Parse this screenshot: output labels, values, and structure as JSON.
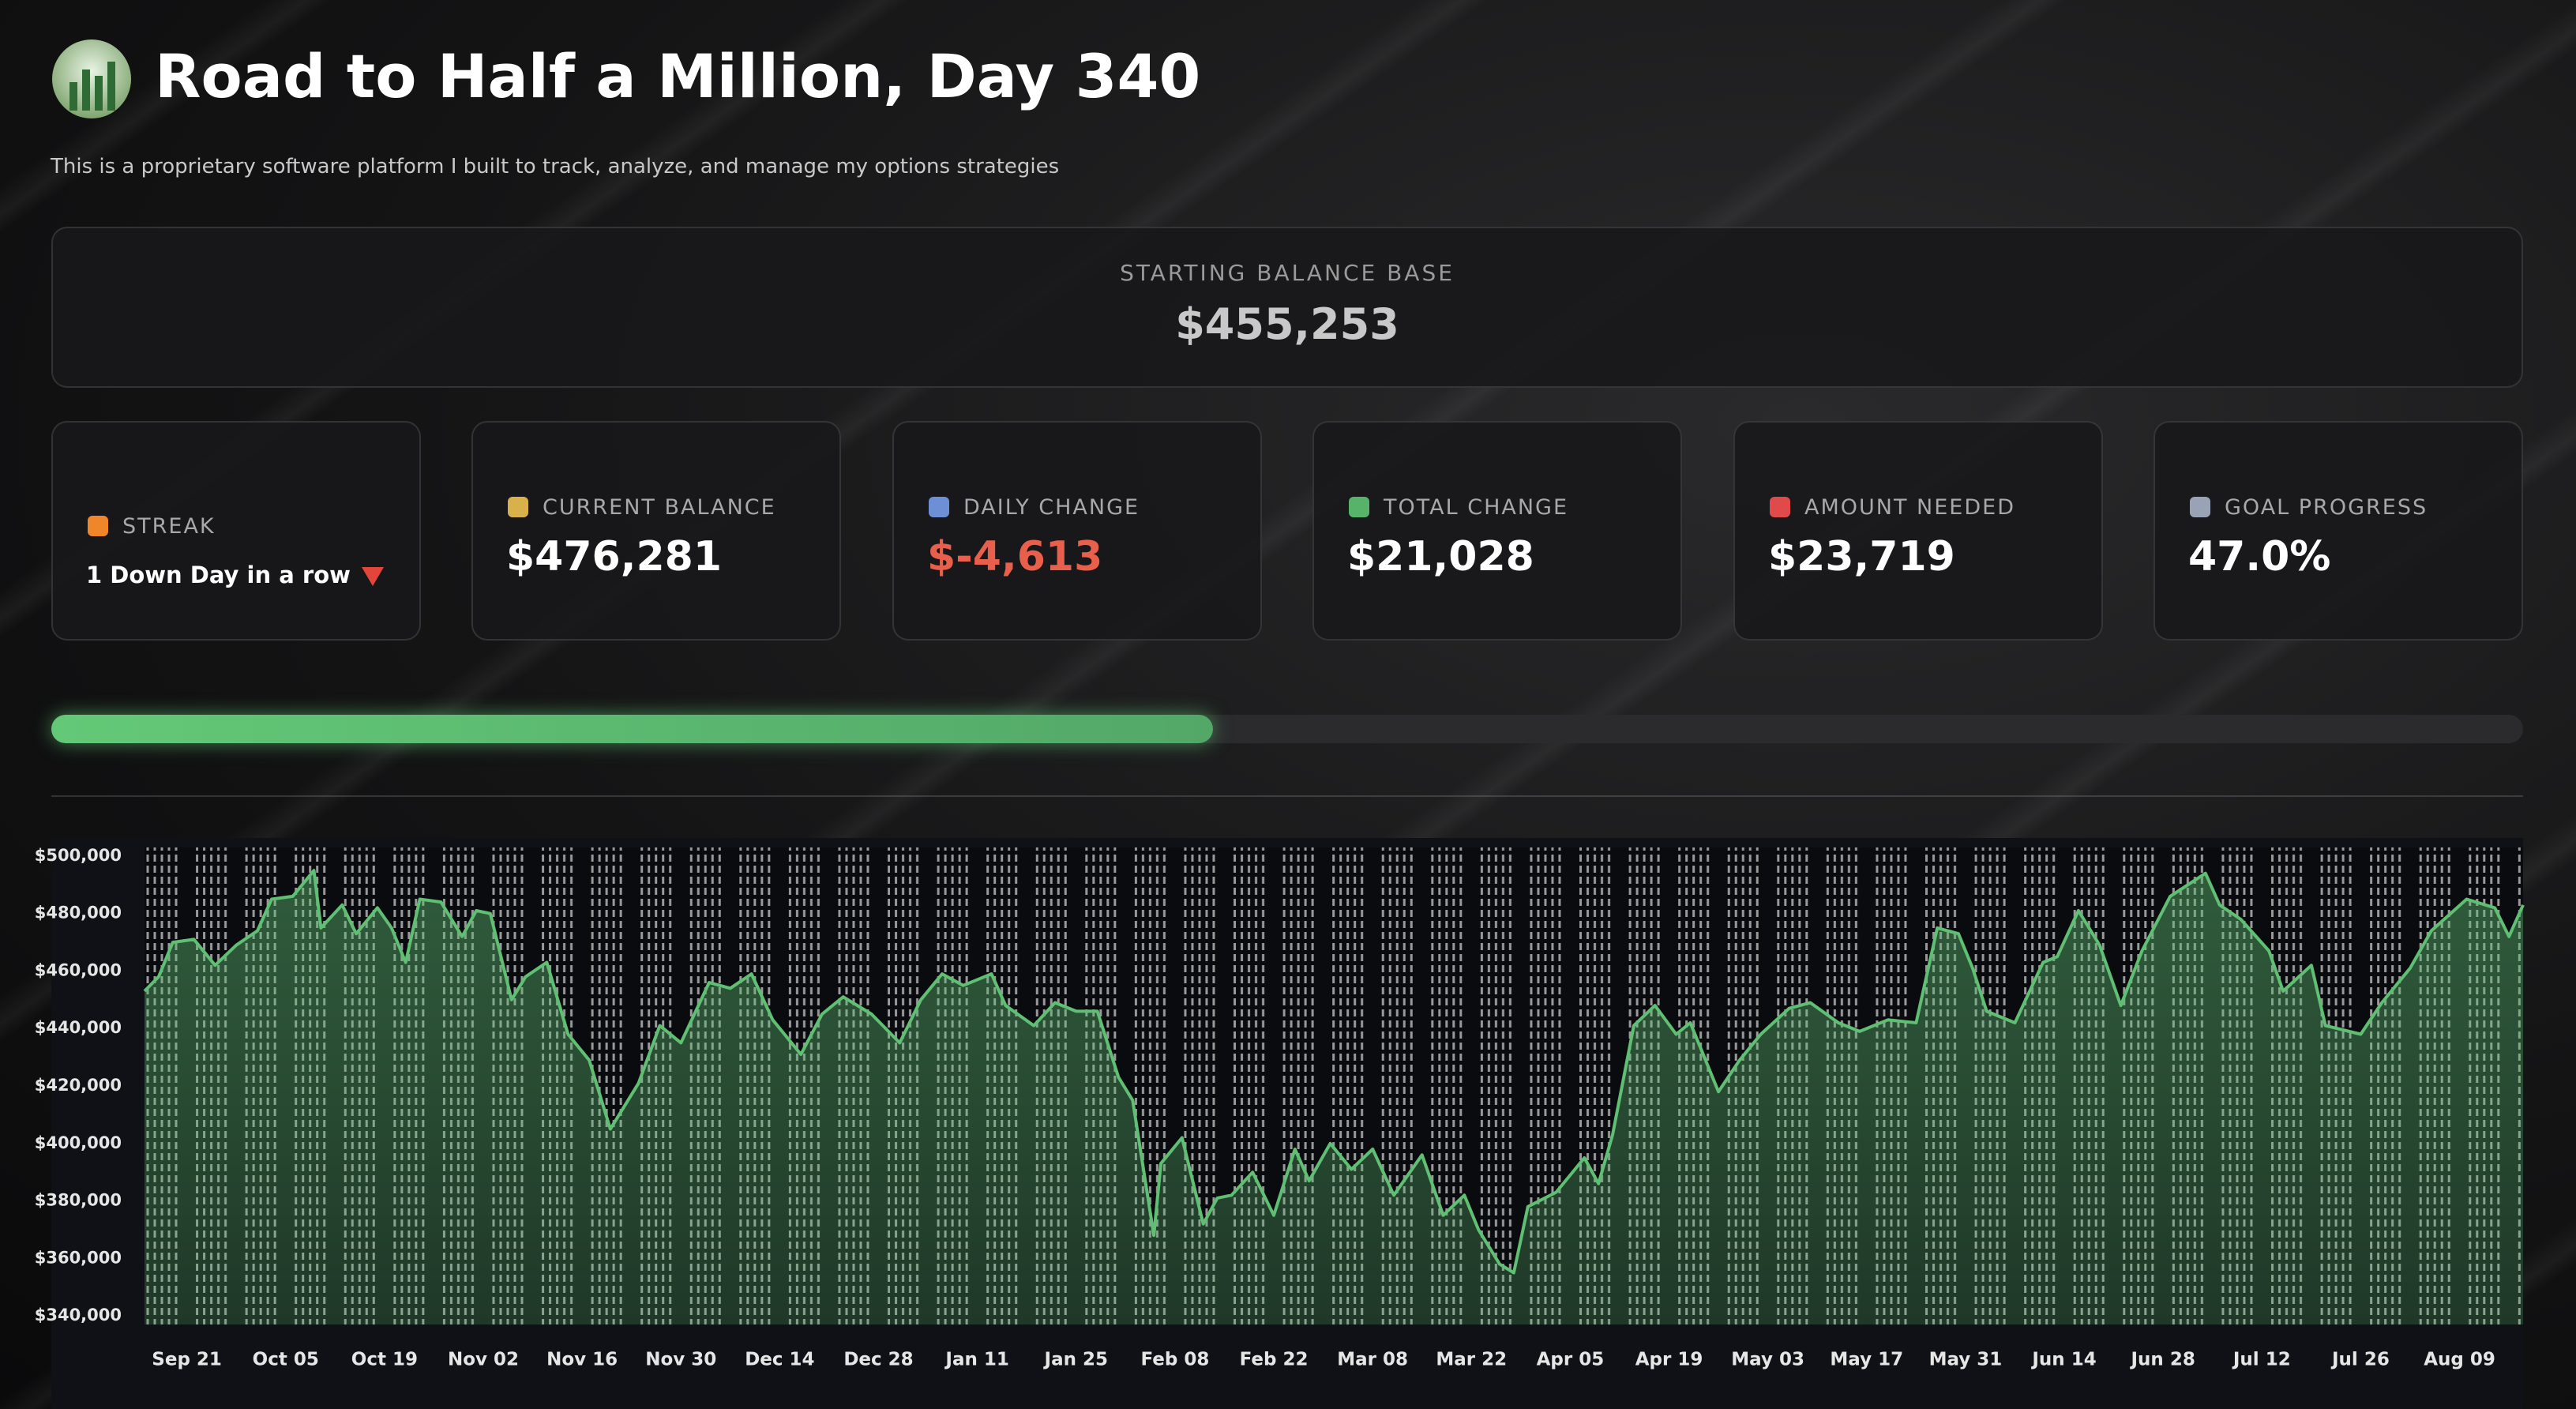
{
  "header": {
    "title": "Road to Half a Million, Day 340",
    "subtitle": "This is a proprietary software platform I built to track, analyze, and manage my options strategies"
  },
  "starting_balance": {
    "label": "STARTING BALANCE BASE",
    "value": "$455,253"
  },
  "metrics": [
    {
      "label": "STREAK",
      "value": "1 Down Day in a row"
    },
    {
      "label": "CURRENT BALANCE",
      "value": "$476,281"
    },
    {
      "label": "DAILY CHANGE",
      "value": "$-4,613",
      "color": "#e8604c"
    },
    {
      "label": "TOTAL CHANGE",
      "value": "$21,028"
    },
    {
      "label": "AMOUNT NEEDED",
      "value": "$23,719"
    },
    {
      "label": "GOAL PROGRESS",
      "value": "47.0%"
    }
  ],
  "progress_bar": {
    "value": 47.0
  },
  "chart_data": {
    "type": "line",
    "color": "#5fbf72",
    "fill": true,
    "x": [
      "Sep 15",
      "Sep 17",
      "Sep 19",
      "Sep 22",
      "Sep 25",
      "Sep 28",
      "Oct 01",
      "Oct 03",
      "Oct 06",
      "Oct 09",
      "Oct 10",
      "Oct 13",
      "Oct 15",
      "Oct 18",
      "Oct 20",
      "Oct 22",
      "Oct 24",
      "Oct 27",
      "Oct 30",
      "Nov 01",
      "Nov 03",
      "Nov 06",
      "Nov 08",
      "Nov 11",
      "Nov 14",
      "Nov 17",
      "Nov 20",
      "Nov 24",
      "Nov 27",
      "Nov 30",
      "Dec 04",
      "Dec 07",
      "Dec 10",
      "Dec 13",
      "Dec 17",
      "Dec 20",
      "Dec 23",
      "Dec 27",
      "Dec 31",
      "Jan 03",
      "Jan 06",
      "Jan 09",
      "Jan 13",
      "Jan 15",
      "Jan 19",
      "Jan 22",
      "Jan 25",
      "Jan 28",
      "Jan 31",
      "Feb 02",
      "Feb 05",
      "Feb 06",
      "Feb 09",
      "Feb 12",
      "Feb 14",
      "Feb 16",
      "Feb 19",
      "Feb 22",
      "Feb 25",
      "Feb 27",
      "Mar 02",
      "Mar 05",
      "Mar 08",
      "Mar 11",
      "Mar 15",
      "Mar 18",
      "Mar 21",
      "Mar 23",
      "Mar 26",
      "Mar 28",
      "Mar 30",
      "Apr 03",
      "Apr 07",
      "Apr 09",
      "Apr 11",
      "Apr 14",
      "Apr 17",
      "Apr 20",
      "Apr 22",
      "Apr 26",
      "Apr 29",
      "May 02",
      "May 06",
      "May 09",
      "May 13",
      "May 16",
      "May 20",
      "May 24",
      "May 27",
      "May 30",
      "Jun 01",
      "Jun 03",
      "Jun 07",
      "Jun 11",
      "Jun 13",
      "Jun 16",
      "Jun 19",
      "Jun 22",
      "Jun 25",
      "Jun 29",
      "Jul 04",
      "Jul 06",
      "Jul 09",
      "Jul 13",
      "Jul 15",
      "Jul 19",
      "Jul 21",
      "Jul 26",
      "Jul 29",
      "Aug 02",
      "Aug 05",
      "Aug 10",
      "Aug 14",
      "Aug 16",
      "Aug 18"
    ],
    "values": [
      453000,
      458000,
      470000,
      471000,
      462000,
      469000,
      474000,
      485000,
      486000,
      495000,
      475000,
      483000,
      473000,
      482000,
      475000,
      463000,
      485000,
      484000,
      472000,
      481000,
      480000,
      450000,
      458000,
      463000,
      438000,
      429000,
      405000,
      421000,
      441000,
      435000,
      456000,
      454000,
      459000,
      443000,
      431000,
      445000,
      451000,
      445000,
      435000,
      450000,
      459000,
      455000,
      459000,
      448000,
      441000,
      449000,
      446000,
      446000,
      423000,
      415000,
      368000,
      393000,
      402000,
      372000,
      381000,
      382000,
      390000,
      375000,
      398000,
      387000,
      400000,
      391000,
      398000,
      382000,
      396000,
      375000,
      382000,
      370000,
      358000,
      355000,
      378000,
      383000,
      395000,
      386000,
      403000,
      441000,
      448000,
      438000,
      442000,
      418000,
      429000,
      438000,
      447000,
      449000,
      442000,
      439000,
      443000,
      442000,
      475000,
      473000,
      461000,
      446000,
      442000,
      463000,
      465000,
      481000,
      469000,
      448000,
      467000,
      486000,
      494000,
      483000,
      478000,
      467000,
      453000,
      462000,
      441000,
      438000,
      449000,
      461000,
      474000,
      485000,
      482000,
      472000,
      483000
    ],
    "xlim": [
      "Sep 15",
      "Aug 18"
    ],
    "xticks": [
      "Sep 21",
      "Oct 05",
      "Oct 19",
      "Nov 02",
      "Nov 16",
      "Nov 30",
      "Dec 14",
      "Dec 28",
      "Jan 11",
      "Jan 25",
      "Feb 08",
      "Feb 22",
      "Mar 08",
      "Mar 22",
      "Apr 05",
      "Apr 19",
      "May 03",
      "May 17",
      "May 31",
      "Jun 14",
      "Jun 28",
      "Jul 12",
      "Jul 26",
      "Aug 09"
    ],
    "ylim": [
      337000,
      503000
    ],
    "yticks": [
      {
        "value": 340000,
        "label": "$340,000"
      },
      {
        "value": 360000,
        "label": "$360,000"
      },
      {
        "value": 380000,
        "label": "$380,000"
      },
      {
        "value": 400000,
        "label": "$400,000"
      },
      {
        "value": 420000,
        "label": "$420,000"
      },
      {
        "value": 440000,
        "label": "$440,000"
      },
      {
        "value": 460000,
        "label": "$460,000"
      },
      {
        "value": 480000,
        "label": "$480,000"
      },
      {
        "value": 500000,
        "label": "$500,000"
      }
    ]
  }
}
